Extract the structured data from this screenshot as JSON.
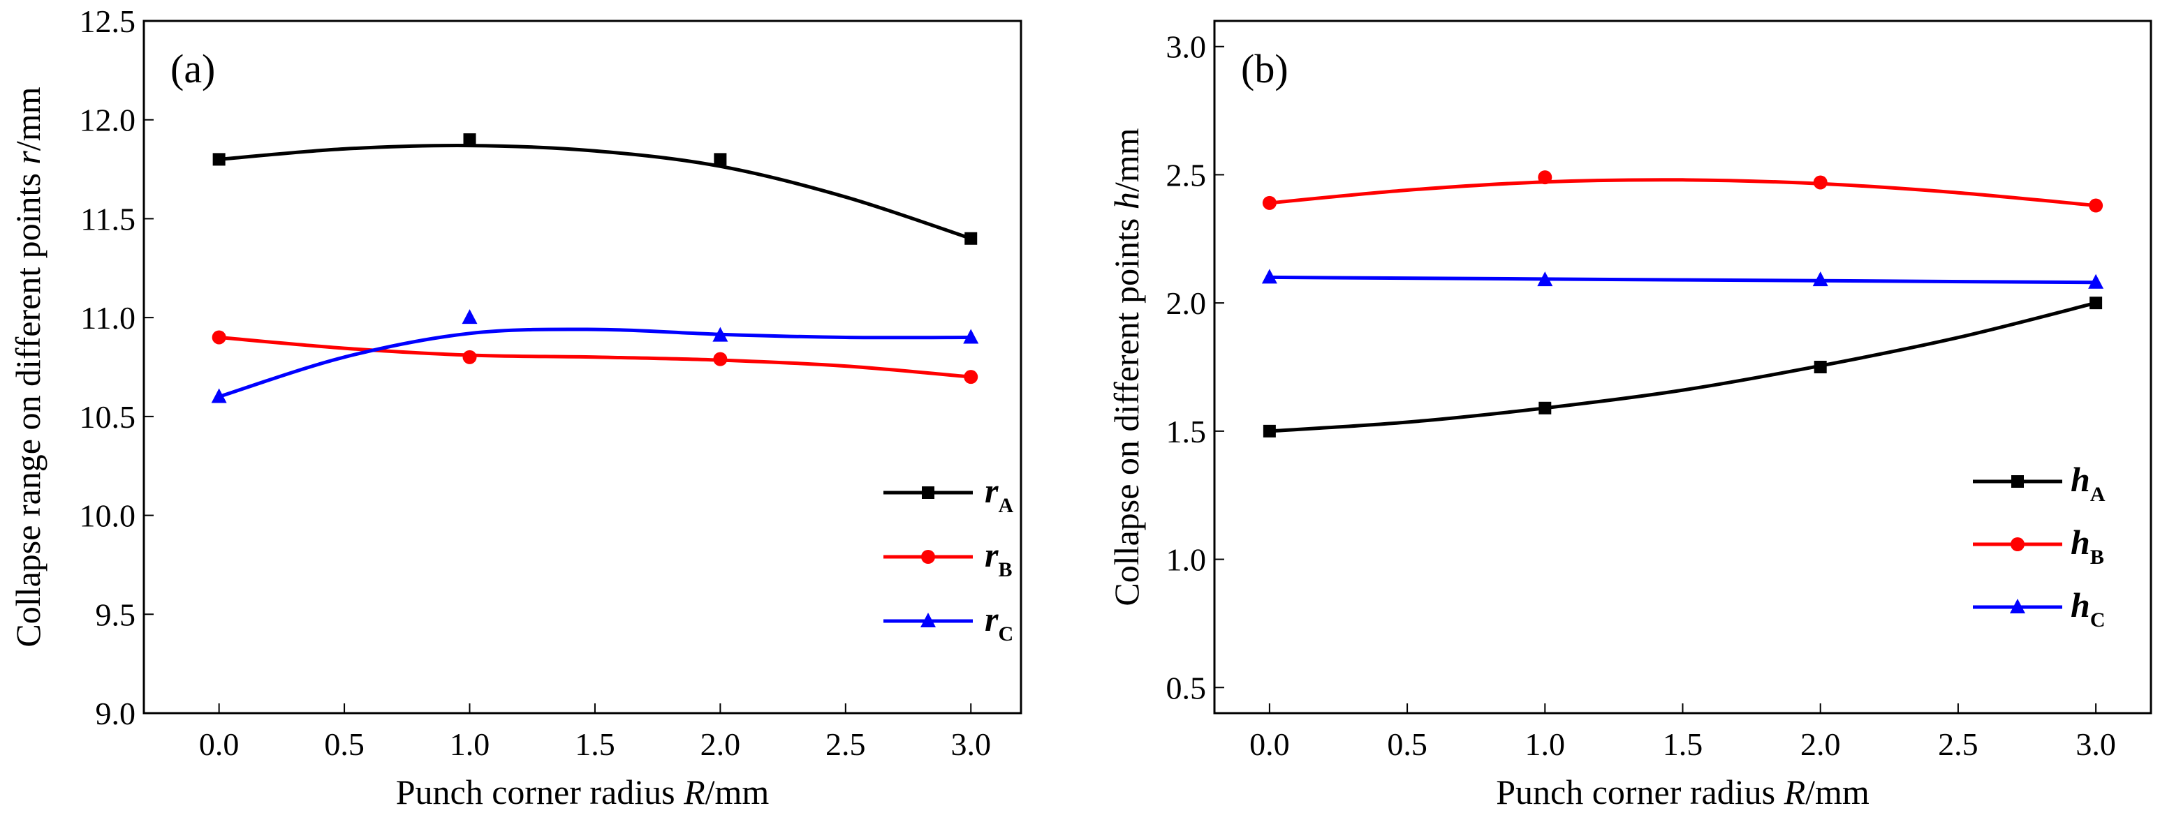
{
  "chart_data": [
    {
      "type": "line",
      "panel_label": "(a)",
      "xlabel": {
        "text": "Punch corner radius",
        "var": "R",
        "unit": "/mm"
      },
      "ylabel": {
        "text": "Collapse range on different points",
        "var": "r",
        "unit": "/mm"
      },
      "xlim": [
        -0.3,
        3.2
      ],
      "ylim": [
        9.0,
        12.5
      ],
      "xticks": [
        0.0,
        0.5,
        1.0,
        1.5,
        2.0,
        2.5,
        3.0
      ],
      "xtick_labels": [
        "0.0",
        "0.5",
        "1.0",
        "1.5",
        "2.0",
        "2.5",
        "3.0"
      ],
      "yticks": [
        9.0,
        9.5,
        10.0,
        10.5,
        11.0,
        11.5,
        12.0,
        12.5
      ],
      "ytick_labels": [
        "9.0",
        "9.5",
        "10.0",
        "10.5",
        "11.0",
        "11.5",
        "12.0",
        "12.5"
      ],
      "legend_position": "bottom-right",
      "series": [
        {
          "name": "r",
          "sub": "A",
          "color": "#000000",
          "marker": "square",
          "x": [
            0,
            1,
            2,
            3
          ],
          "values": [
            11.8,
            11.9,
            11.8,
            11.4
          ],
          "fit_x": [
            0,
            0.5,
            1,
            1.5,
            2,
            2.5,
            3
          ],
          "fit_values": [
            11.8,
            11.853,
            11.87,
            11.843,
            11.765,
            11.61,
            11.4
          ]
        },
        {
          "name": "r",
          "sub": "B",
          "color": "#ff0000",
          "marker": "circle",
          "x": [
            0,
            1,
            2,
            3
          ],
          "values": [
            10.9,
            10.8,
            10.79,
            10.7
          ],
          "fit_x": [
            0,
            0.5,
            1,
            1.5,
            2,
            2.5,
            3
          ],
          "fit_values": [
            10.9,
            10.845,
            10.81,
            10.8,
            10.785,
            10.755,
            10.7
          ]
        },
        {
          "name": "r",
          "sub": "C",
          "color": "#0000ff",
          "marker": "triangle",
          "x": [
            0,
            1,
            2,
            3
          ],
          "values": [
            10.6,
            11.0,
            10.91,
            10.9
          ],
          "fit_x": [
            0,
            0.5,
            1,
            1.5,
            2,
            2.5,
            3
          ],
          "fit_values": [
            10.6,
            10.8,
            10.92,
            10.94,
            10.915,
            10.9,
            10.9
          ]
        }
      ]
    },
    {
      "type": "line",
      "panel_label": "(b)",
      "xlabel": {
        "text": "Punch corner radius",
        "var": "R",
        "unit": "/mm"
      },
      "ylabel": {
        "text": "Collapse on different points",
        "var": "h",
        "unit": "/mm"
      },
      "xlim": [
        -0.2,
        3.2
      ],
      "ylim": [
        0.4,
        3.1
      ],
      "xticks": [
        0.0,
        0.5,
        1.0,
        1.5,
        2.0,
        2.5,
        3.0
      ],
      "xtick_labels": [
        "0.0",
        "0.5",
        "1.0",
        "1.5",
        "2.0",
        "2.5",
        "3.0"
      ],
      "yticks": [
        0.5,
        1.0,
        1.5,
        2.0,
        2.5,
        3.0
      ],
      "ytick_labels": [
        "0.5",
        "1.0",
        "1.5",
        "2.0",
        "2.5",
        "3.0"
      ],
      "legend_position": "right",
      "series": [
        {
          "name": "h",
          "sub": "A",
          "color": "#000000",
          "marker": "square",
          "x": [
            0,
            1,
            2,
            3
          ],
          "values": [
            1.5,
            1.59,
            1.75,
            2.0
          ],
          "fit_x": [
            0,
            0.5,
            1,
            1.5,
            2,
            2.5,
            3
          ],
          "fit_values": [
            1.5,
            1.535,
            1.59,
            1.66,
            1.755,
            1.865,
            2.0
          ]
        },
        {
          "name": "h",
          "sub": "B",
          "color": "#ff0000",
          "marker": "circle",
          "x": [
            0,
            1,
            2,
            3
          ],
          "values": [
            2.39,
            2.49,
            2.47,
            2.38
          ],
          "fit_x": [
            0,
            0.5,
            1,
            1.5,
            2,
            2.5,
            3
          ],
          "fit_values": [
            2.39,
            2.44,
            2.472,
            2.48,
            2.465,
            2.43,
            2.38
          ]
        },
        {
          "name": "h",
          "sub": "C",
          "color": "#0000ff",
          "marker": "triangle",
          "x": [
            0,
            1,
            2,
            3
          ],
          "values": [
            2.1,
            2.09,
            2.09,
            2.08
          ],
          "fit_x": [
            0,
            1.5,
            3
          ],
          "fit_values": [
            2.1,
            2.09,
            2.08
          ]
        }
      ]
    }
  ]
}
